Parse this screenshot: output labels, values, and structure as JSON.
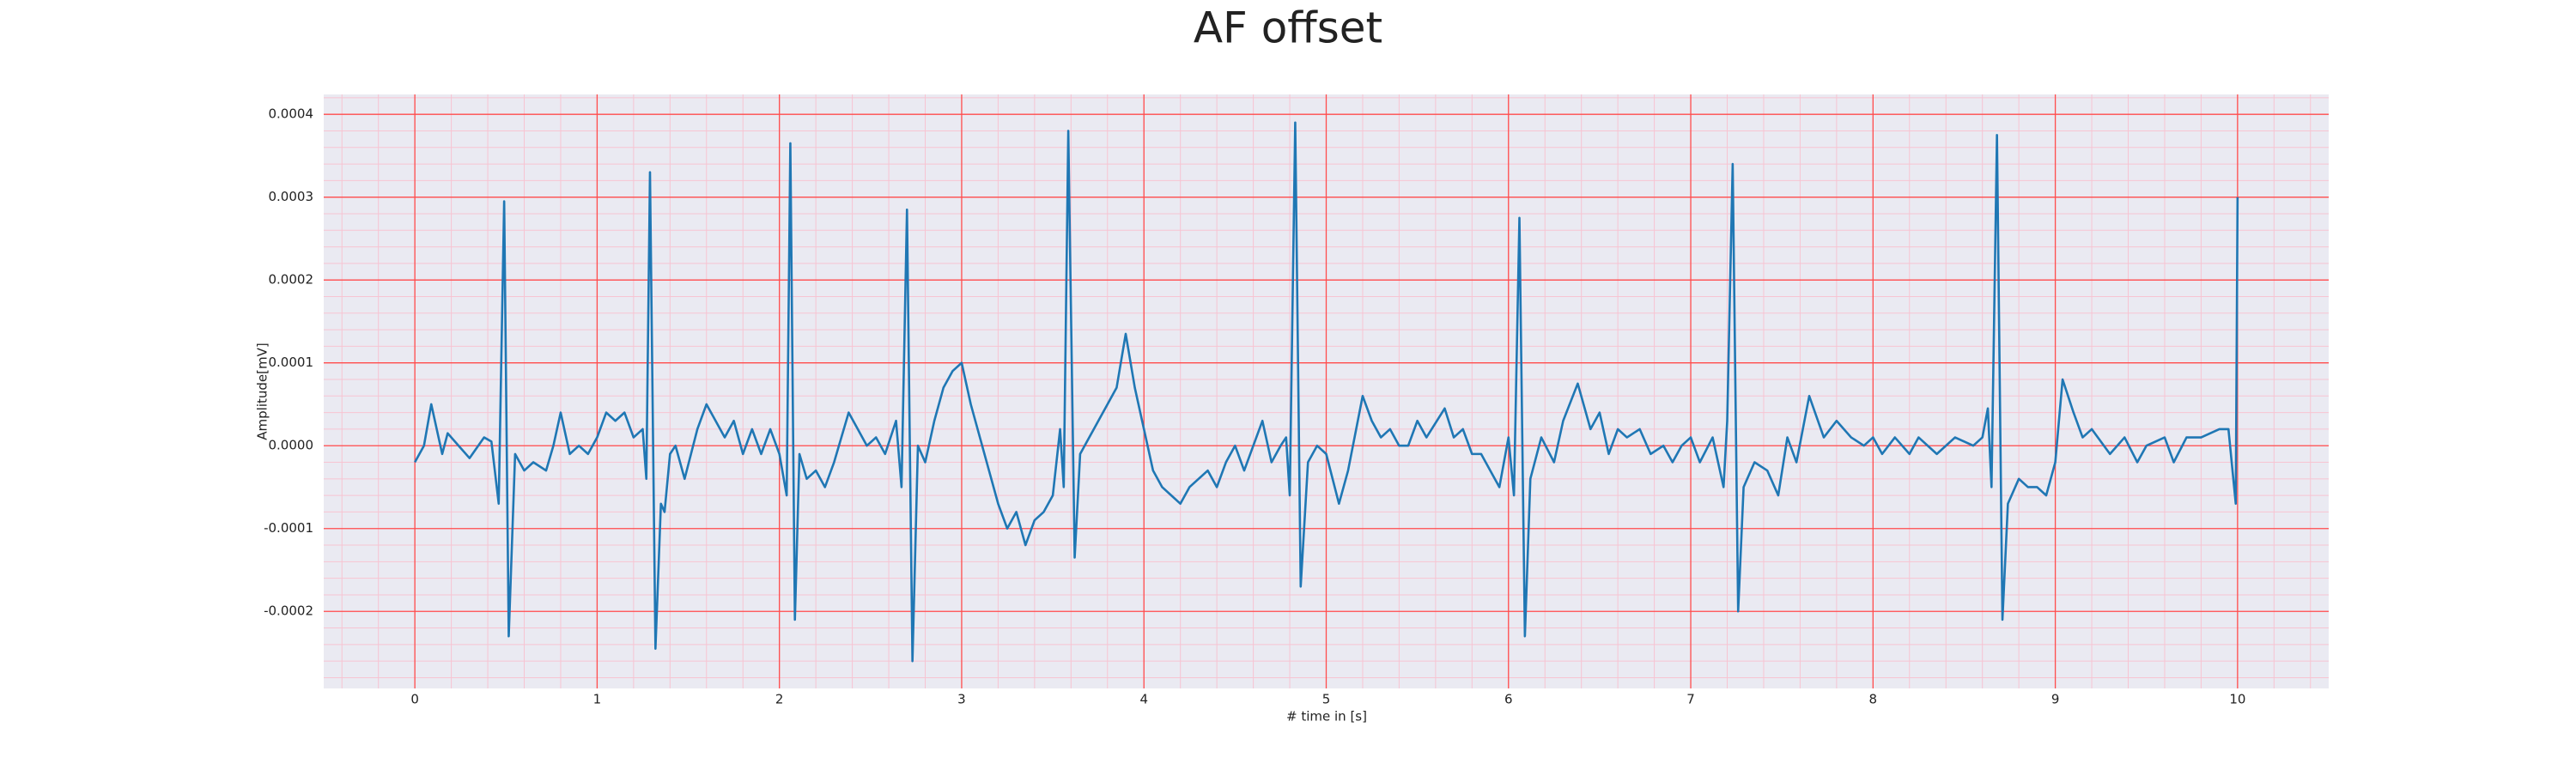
{
  "chart_data": {
    "type": "line",
    "title": "AF offset",
    "xlabel": "# time in [s]",
    "ylabel": "Amplitude[mV]",
    "xlim": [
      -0.5,
      10.5
    ],
    "ylim": [
      -0.000293,
      0.000424
    ],
    "xticks": [
      0,
      1,
      2,
      3,
      4,
      5,
      6,
      7,
      8,
      9,
      10
    ],
    "yticks": [
      -0.0002,
      -0.0001,
      {
        "value": 0,
        "label": "0.0000"
      },
      0.0001,
      0.0002,
      0.0003,
      0.0004
    ],
    "grid": true,
    "minor_grid": true,
    "background": "#eaeaf2",
    "grid_color": "#ff4d4d",
    "minor_grid_color": "#f7c4d2",
    "series": [
      {
        "color": "#1f77b4",
        "x": [
          0,
          0.05,
          0.09,
          0.15,
          0.18,
          0.24,
          0.3,
          0.38,
          0.42,
          0.46,
          0.49,
          0.515,
          0.55,
          0.6,
          0.65,
          0.72,
          0.76,
          0.8,
          0.85,
          0.9,
          0.95,
          1.0,
          1.05,
          1.1,
          1.15,
          1.2,
          1.25,
          1.27,
          1.29,
          1.32,
          1.35,
          1.37,
          1.4,
          1.43,
          1.48,
          1.55,
          1.6,
          1.65,
          1.7,
          1.75,
          1.8,
          1.85,
          1.9,
          1.95,
          2.0,
          2.04,
          2.06,
          2.085,
          2.11,
          2.15,
          2.2,
          2.25,
          2.3,
          2.38,
          2.43,
          2.48,
          2.53,
          2.58,
          2.64,
          2.67,
          2.7,
          2.73,
          2.76,
          2.8,
          2.85,
          2.9,
          2.95,
          3.0,
          3.05,
          3.1,
          3.15,
          3.2,
          3.25,
          3.3,
          3.35,
          3.4,
          3.45,
          3.5,
          3.54,
          3.56,
          3.585,
          3.62,
          3.65,
          3.7,
          3.75,
          3.8,
          3.85,
          3.9,
          3.95,
          4.0,
          4.05,
          4.1,
          4.15,
          4.2,
          4.25,
          4.3,
          4.35,
          4.4,
          4.45,
          4.5,
          4.55,
          4.6,
          4.65,
          4.7,
          4.75,
          4.78,
          4.8,
          4.83,
          4.86,
          4.9,
          4.95,
          5.0,
          5.07,
          5.12,
          5.2,
          5.25,
          5.3,
          5.35,
          5.4,
          5.45,
          5.5,
          5.55,
          5.65,
          5.7,
          5.75,
          5.8,
          5.85,
          5.95,
          6.0,
          6.03,
          6.06,
          6.09,
          6.12,
          6.18,
          6.25,
          6.3,
          6.38,
          6.45,
          6.5,
          6.55,
          6.6,
          6.65,
          6.72,
          6.78,
          6.85,
          6.9,
          6.95,
          7.0,
          7.05,
          7.12,
          7.18,
          7.2,
          7.23,
          7.26,
          7.29,
          7.35,
          7.42,
          7.48,
          7.53,
          7.58,
          7.65,
          7.73,
          7.8,
          7.88,
          7.95,
          8.0,
          8.05,
          8.12,
          8.2,
          8.25,
          8.35,
          8.45,
          8.55,
          8.6,
          8.63,
          8.65,
          8.68,
          8.71,
          8.74,
          8.8,
          8.85,
          8.9,
          8.95,
          9.0,
          9.04,
          9.1,
          9.15,
          9.2,
          9.3,
          9.38,
          9.45,
          9.5,
          9.6,
          9.65,
          9.72,
          9.8,
          9.9,
          9.95,
          9.99,
          10.0
        ],
        "values": [
          -2e-05,
          0,
          5e-05,
          -1e-05,
          1.5e-05,
          0,
          -1.5e-05,
          1e-05,
          5e-06,
          -7e-05,
          0.000295,
          -0.00023,
          -1e-05,
          -3e-05,
          -2e-05,
          -3e-05,
          0,
          4e-05,
          -1e-05,
          0,
          -1e-05,
          1e-05,
          4e-05,
          3e-05,
          4e-05,
          1e-05,
          2e-05,
          -4e-05,
          0.00033,
          -0.000245,
          -7e-05,
          -8e-05,
          -1e-05,
          0,
          -4e-05,
          2e-05,
          5e-05,
          3e-05,
          1e-05,
          3e-05,
          -1e-05,
          2e-05,
          -1e-05,
          2e-05,
          -1e-05,
          -6e-05,
          0.000365,
          -0.00021,
          -1e-05,
          -4e-05,
          -3e-05,
          -5e-05,
          -2e-05,
          4e-05,
          2e-05,
          0,
          1e-05,
          -1e-05,
          3e-05,
          -5e-05,
          0.000285,
          -0.00026,
          0,
          -2e-05,
          3e-05,
          7e-05,
          9e-05,
          0.0001,
          5e-05,
          1e-05,
          -3e-05,
          -7e-05,
          -0.0001,
          -8e-05,
          -0.00012,
          -9e-05,
          -8e-05,
          -6e-05,
          2e-05,
          -5e-05,
          0.00038,
          -0.000135,
          -1e-05,
          1e-05,
          3e-05,
          5e-05,
          7e-05,
          0.000135,
          7e-05,
          2e-05,
          -3e-05,
          -5e-05,
          -6e-05,
          -7e-05,
          -5e-05,
          -4e-05,
          -3e-05,
          -5e-05,
          -2e-05,
          0,
          -3e-05,
          0,
          3e-05,
          -2e-05,
          0,
          1e-05,
          -6e-05,
          0.00039,
          -0.00017,
          -2e-05,
          0,
          -1e-05,
          -7e-05,
          -3e-05,
          6e-05,
          3e-05,
          1e-05,
          2e-05,
          0,
          0,
          3e-05,
          1e-05,
          4.5e-05,
          1e-05,
          2e-05,
          -1e-05,
          -1e-05,
          -5e-05,
          1e-05,
          -6e-05,
          0.000275,
          -0.00023,
          -4e-05,
          1e-05,
          -2e-05,
          3e-05,
          7.5e-05,
          2e-05,
          4e-05,
          -1e-05,
          2e-05,
          1e-05,
          2e-05,
          -1e-05,
          0,
          -2e-05,
          0,
          1e-05,
          -2e-05,
          1e-05,
          -5e-05,
          3e-05,
          0.00034,
          -0.0002,
          -5e-05,
          -2e-05,
          -3e-05,
          -6e-05,
          1e-05,
          -2e-05,
          6e-05,
          1e-05,
          3e-05,
          1e-05,
          0,
          1e-05,
          -1e-05,
          1e-05,
          -1e-05,
          1e-05,
          -1e-05,
          1e-05,
          0,
          1e-05,
          4.5e-05,
          -5e-05,
          0.000375,
          -0.00021,
          -7e-05,
          -4e-05,
          -5e-05,
          -5e-05,
          -6e-05,
          -2e-05,
          8e-05,
          4e-05,
          1e-05,
          2e-05,
          -1e-05,
          1e-05,
          -2e-05,
          0,
          1e-05,
          -2e-05,
          1e-05,
          1e-05,
          2e-05,
          2e-05,
          -7e-05,
          0.0003
        ]
      }
    ]
  }
}
